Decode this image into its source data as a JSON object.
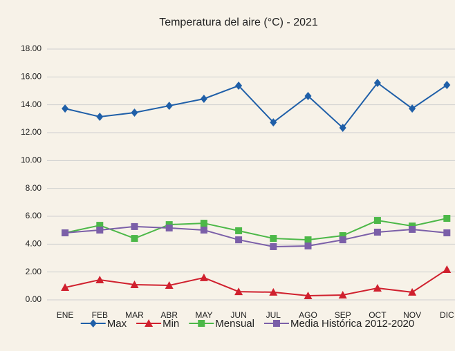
{
  "chart_data": {
    "type": "line",
    "title": "Temperatura del aire (°C) -  2021",
    "categories": [
      "ENE",
      "FEB",
      "MAR",
      "ABR",
      "MAY",
      "JUN",
      "JUL",
      "AGO",
      "SEP",
      "OCT",
      "NOV",
      "DIC"
    ],
    "series": [
      {
        "name": "Max",
        "color": "#1f5fa8",
        "marker": "diamond",
        "values": [
          13.73,
          13.14,
          13.44,
          13.93,
          14.43,
          15.37,
          12.74,
          14.63,
          12.35,
          15.57,
          13.73,
          15.42
        ]
      },
      {
        "name": "Min",
        "color": "#d0202e",
        "marker": "triangle",
        "values": [
          0.89,
          1.44,
          1.09,
          1.04,
          1.59,
          0.59,
          0.55,
          0.3,
          0.35,
          0.84,
          0.55,
          2.18
        ]
      },
      {
        "name": "Mensual",
        "color": "#4cb848",
        "marker": "square",
        "values": [
          4.81,
          5.35,
          4.41,
          5.4,
          5.5,
          4.96,
          4.41,
          4.31,
          4.61,
          5.7,
          5.3,
          5.85
        ]
      },
      {
        "name": "Media Histórica 2012-2020",
        "color": "#7b5fa8",
        "marker": "square",
        "values": [
          4.81,
          5.01,
          5.26,
          5.16,
          5.01,
          4.31,
          3.82,
          3.87,
          4.31,
          4.86,
          5.06,
          4.81
        ]
      }
    ],
    "ylim": [
      0,
      18
    ],
    "yticks": [
      {
        "value": 0,
        "label": "0.00"
      },
      {
        "value": 2,
        "label": "2.00"
      },
      {
        "value": 4,
        "label": "4.00"
      },
      {
        "value": 6,
        "label": "6.00"
      },
      {
        "value": 8,
        "label": "8.00"
      },
      {
        "value": 10,
        "label": "10.00"
      },
      {
        "value": 12,
        "label": "12.00"
      },
      {
        "value": 14,
        "label": "14.00"
      },
      {
        "value": 16,
        "label": "16.00"
      },
      {
        "value": 18,
        "label": "18.00"
      }
    ],
    "grid": true,
    "legend": "bottom"
  }
}
